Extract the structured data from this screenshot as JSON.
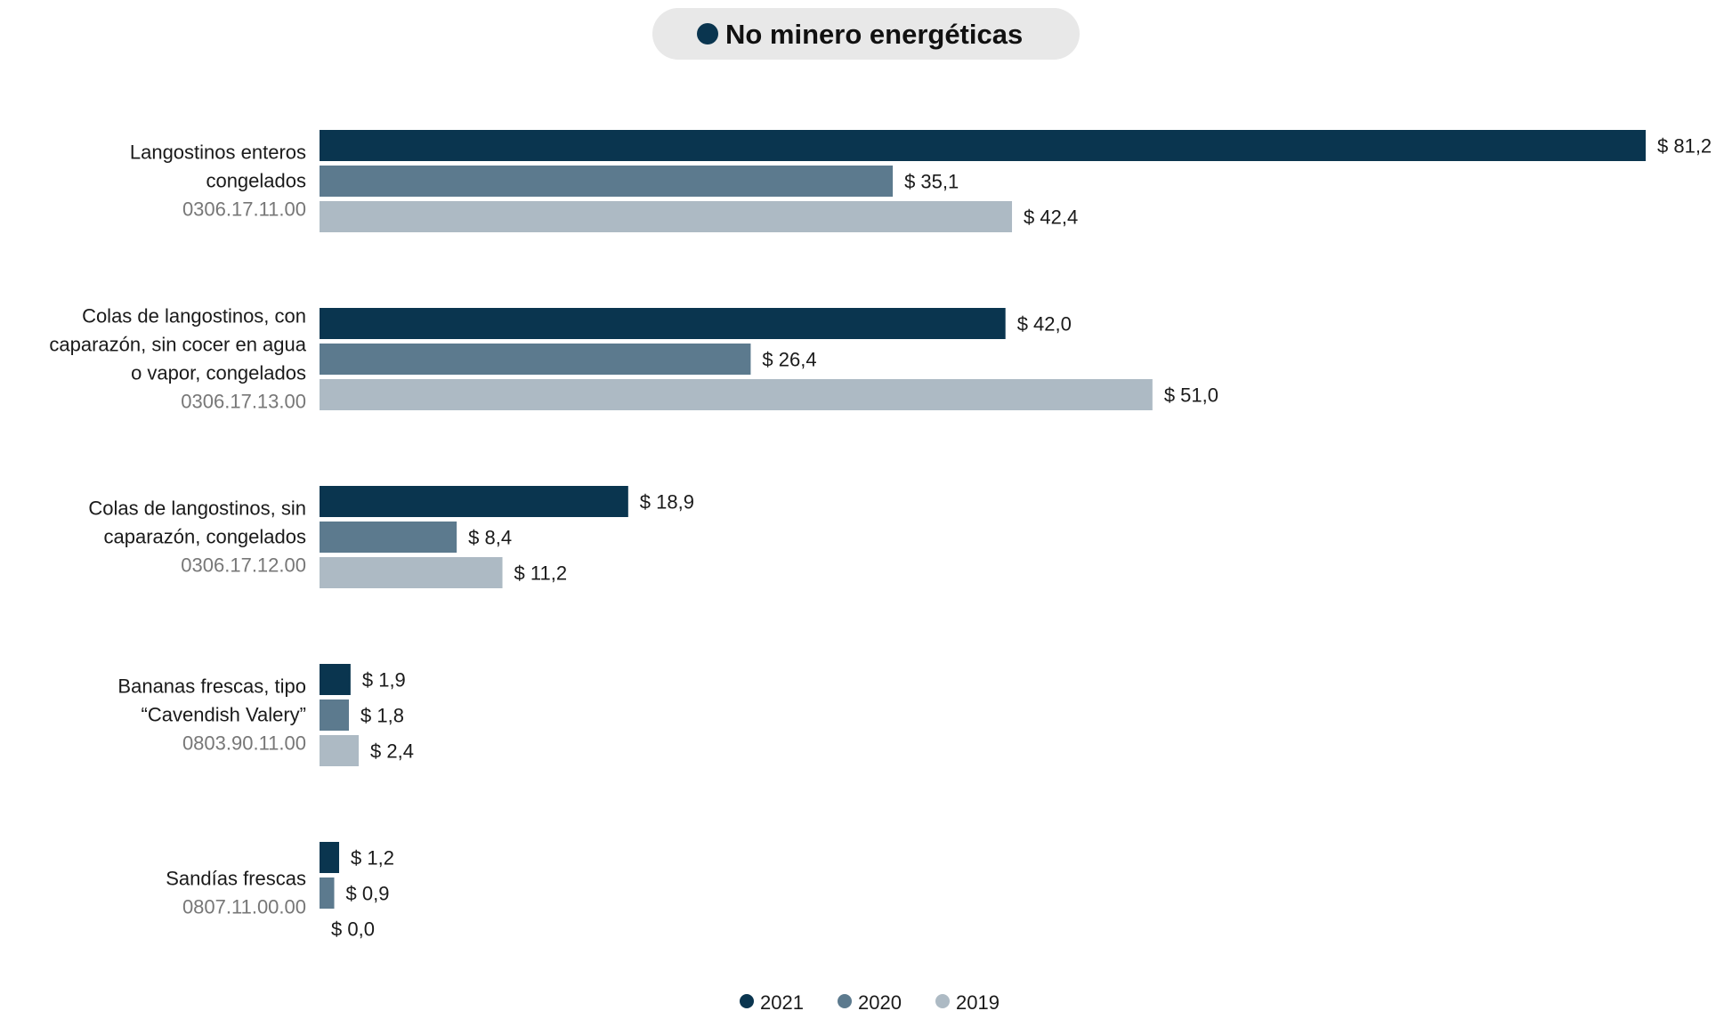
{
  "header": {
    "title": "No minero energéticas"
  },
  "colors": {
    "series_2021": "#0a354f",
    "series_2020": "#5c7a8e",
    "series_2019": "#adbac4",
    "badge_background": "#e8e8e8",
    "text": "#1a1a1a",
    "code_text": "#777777"
  },
  "chart_data": {
    "type": "bar",
    "orientation": "horizontal",
    "value_prefix": "$ ",
    "categories": [
      {
        "label_lines": [
          "Langostinos enteros",
          "congelados"
        ],
        "code": "0306.17.11.00"
      },
      {
        "label_lines": [
          "Colas de langostinos, con",
          "caparazón, sin cocer en agua",
          "o vapor, congelados"
        ],
        "code": "0306.17.13.00"
      },
      {
        "label_lines": [
          "Colas de langostinos, sin",
          "caparazón, congelados"
        ],
        "code": "0306.17.12.00"
      },
      {
        "label_lines": [
          "Bananas frescas, tipo",
          "“Cavendish Valery”"
        ],
        "code": "0803.90.11.00"
      },
      {
        "label_lines": [
          "Sandías frescas"
        ],
        "code": "0807.11.00.00"
      }
    ],
    "series": [
      {
        "name": "2021",
        "color": "#0a354f",
        "values": [
          81.2,
          42.0,
          18.9,
          1.9,
          1.2
        ],
        "labels": [
          "$ 81,2",
          "$ 42,0",
          "$ 18,9",
          "$ 1,9",
          "$ 1,2"
        ]
      },
      {
        "name": "2020",
        "color": "#5c7a8e",
        "values": [
          35.1,
          26.4,
          8.4,
          1.8,
          0.9
        ],
        "labels": [
          "$ 35,1",
          "$ 26,4",
          "$ 8,4",
          "$ 1,8",
          "$ 0,9"
        ]
      },
      {
        "name": "2019",
        "color": "#adbac4",
        "values": [
          42.4,
          51.0,
          11.2,
          2.4,
          0.0
        ],
        "labels": [
          "$ 42,4",
          "$ 51,0",
          "$ 11,2",
          "$ 2,4",
          "$ 0,0"
        ]
      }
    ],
    "xlim": [
      0,
      81.2
    ],
    "grid": false,
    "legend_position": "bottom"
  }
}
